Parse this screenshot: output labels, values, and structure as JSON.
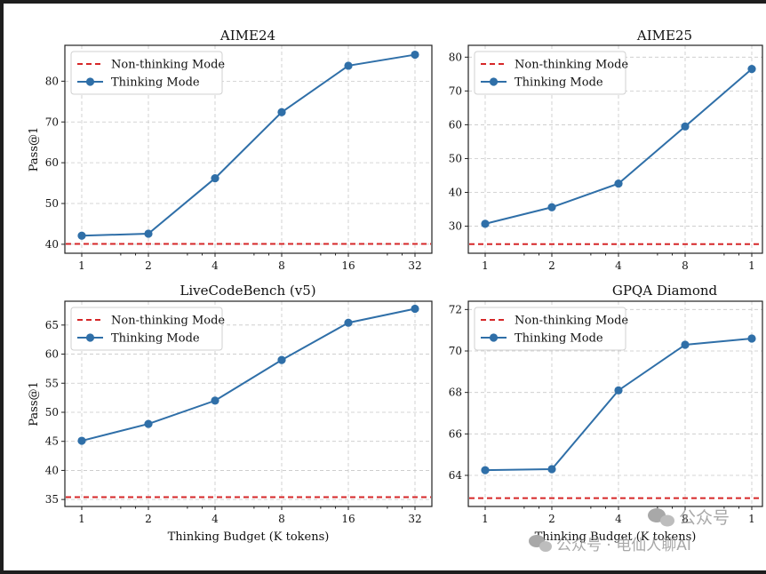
{
  "chart_data": [
    {
      "type": "line",
      "title": "AIME24",
      "xlabel": "",
      "ylabel": "Pass@1",
      "categories": [
        "1",
        "2",
        "4",
        "8",
        "16",
        "32"
      ],
      "series": [
        {
          "name": "Non-thinking Mode",
          "style": "dashed",
          "color": "#d62728",
          "constant": 40.1
        },
        {
          "name": "Thinking Mode",
          "style": "line-marker",
          "color": "#2f6fa8",
          "values": [
            42.1,
            42.6,
            56.2,
            72.4,
            83.8,
            86.5
          ]
        }
      ],
      "yticks": [
        40,
        50,
        60,
        70,
        80
      ],
      "ylim": [
        37.8,
        88.8
      ],
      "grid": true,
      "legend": "top-left"
    },
    {
      "type": "line",
      "title": "AIME25",
      "xlabel": "",
      "ylabel": "",
      "categories": [
        "1",
        "2",
        "4",
        "8",
        "1"
      ],
      "series": [
        {
          "name": "Non-thinking Mode",
          "style": "dashed",
          "color": "#d62728",
          "constant": 24.7
        },
        {
          "name": "Thinking Mode",
          "style": "line-marker",
          "color": "#2f6fa8",
          "values": [
            30.7,
            35.6,
            42.6,
            59.5,
            76.5
          ]
        }
      ],
      "yticks": [
        30,
        40,
        50,
        60,
        70,
        80
      ],
      "ylim": [
        22.0,
        83.5
      ],
      "grid": true,
      "legend": "top-left"
    },
    {
      "type": "line",
      "title": "LiveCodeBench (v5)",
      "xlabel": "Thinking Budget (K tokens)",
      "ylabel": "Pass@1",
      "categories": [
        "1",
        "2",
        "4",
        "8",
        "16",
        "32"
      ],
      "series": [
        {
          "name": "Non-thinking Mode",
          "style": "dashed",
          "color": "#d62728",
          "constant": 35.4
        },
        {
          "name": "Thinking Mode",
          "style": "line-marker",
          "color": "#2f6fa8",
          "values": [
            45.1,
            48.0,
            52.0,
            59.0,
            65.4,
            67.8
          ]
        }
      ],
      "yticks": [
        35,
        40,
        45,
        50,
        55,
        60,
        65
      ],
      "ylim": [
        33.8,
        69.1
      ],
      "grid": true,
      "legend": "top-left"
    },
    {
      "type": "line",
      "title": "GPQA Diamond",
      "xlabel": "Thinking Budget (K tokens)",
      "ylabel": "",
      "categories": [
        "1",
        "2",
        "4",
        "8",
        "1"
      ],
      "series": [
        {
          "name": "Non-thinking Mode",
          "style": "dashed",
          "color": "#d62728",
          "constant": 62.9
        },
        {
          "name": "Thinking Mode",
          "style": "line-marker",
          "color": "#2f6fa8",
          "values": [
            64.25,
            64.3,
            68.1,
            70.3,
            70.6
          ]
        }
      ],
      "yticks": [
        64,
        66,
        68,
        70,
        72
      ],
      "ylim": [
        62.5,
        72.4
      ],
      "grid": true,
      "legend": "top-left"
    }
  ],
  "watermark": {
    "line1": "公众号",
    "line2": "公众号 · 电仙人聊AI"
  },
  "colors": {
    "background": "#1e1e1e",
    "paper": "#ffffff",
    "thinking": "#2f6fa8",
    "non_thinking": "#d62728"
  }
}
